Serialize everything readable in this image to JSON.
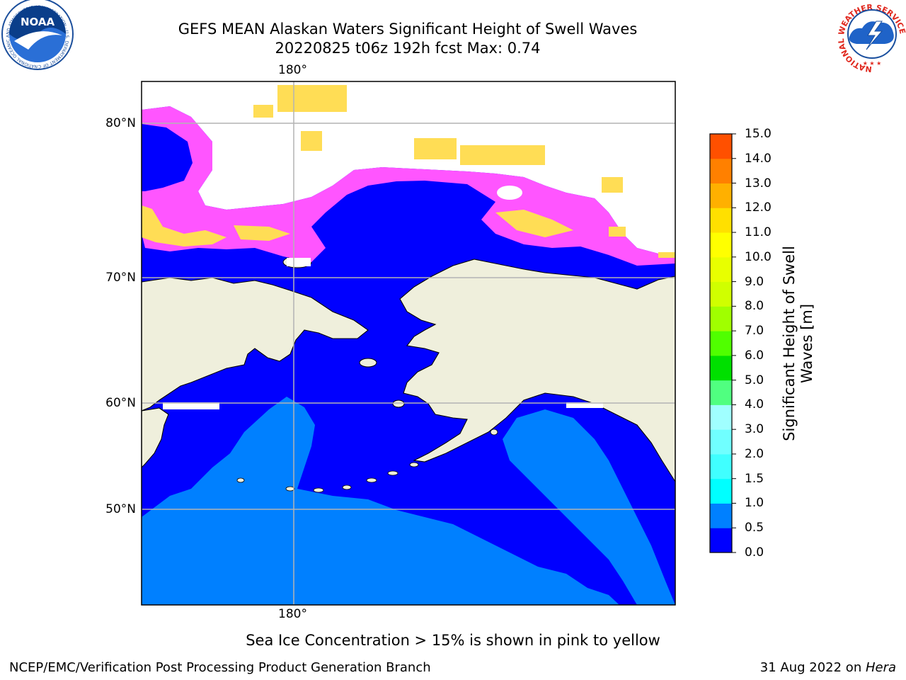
{
  "header": {
    "title_line1": "GEFS MEAN Alaskan Waters Significant Height of Swell Waves",
    "title_line2": "20220825 t06z 192h fcst   Max: 0.74"
  },
  "logos": {
    "left_name": "NOAA",
    "left_ring_text": "NATIONAL OCEANIC AND ATMOSPHERIC ADMINISTRATION · U.S. DEPARTMENT OF COMMERCE",
    "right_ring_text": "NATIONAL WEATHER SERVICE"
  },
  "map": {
    "lon_label_top": "180°",
    "lon_label_bottom": "180°",
    "lat_labels": [
      "80°N",
      "70°N",
      "60°N",
      "50°N"
    ],
    "colors": {
      "ocean_low": "#0000ff",
      "ocean_mid": "#0080ff",
      "land": "#efefdc",
      "ice_pink": "#ff55ff",
      "ice_yellow": "#ffdd55",
      "grid": "#b4b4b4"
    }
  },
  "colorbar": {
    "label_line1": "Significant Height of Swell",
    "label_line2": "Waves [m]",
    "ticks": [
      "15.0",
      "14.0",
      "13.0",
      "12.0",
      "11.0",
      "10.0",
      "9.0",
      "8.0",
      "7.0",
      "6.0",
      "5.0",
      "4.0",
      "3.0",
      "2.0",
      "1.5",
      "1.0",
      "0.5",
      "0.0"
    ],
    "colors_bottom_to_top": [
      "#0000ff",
      "#0080ff",
      "#00ffff",
      "#40ffff",
      "#70ffff",
      "#a0ffff",
      "#50ff80",
      "#00e000",
      "#50ff00",
      "#a0ff00",
      "#d0ff00",
      "#e8ff00",
      "#ffff00",
      "#ffe000",
      "#ffb000",
      "#ff8000",
      "#ff5000",
      "#ff2000",
      "#ff0000"
    ]
  },
  "footer": {
    "note": "Sea Ice Concentration > 15% is shown in pink to yellow",
    "left": "NCEP/EMC/Verification Post Processing Product Generation Branch",
    "right_prefix": "31 Aug 2022 on ",
    "right_host": "Hera"
  }
}
